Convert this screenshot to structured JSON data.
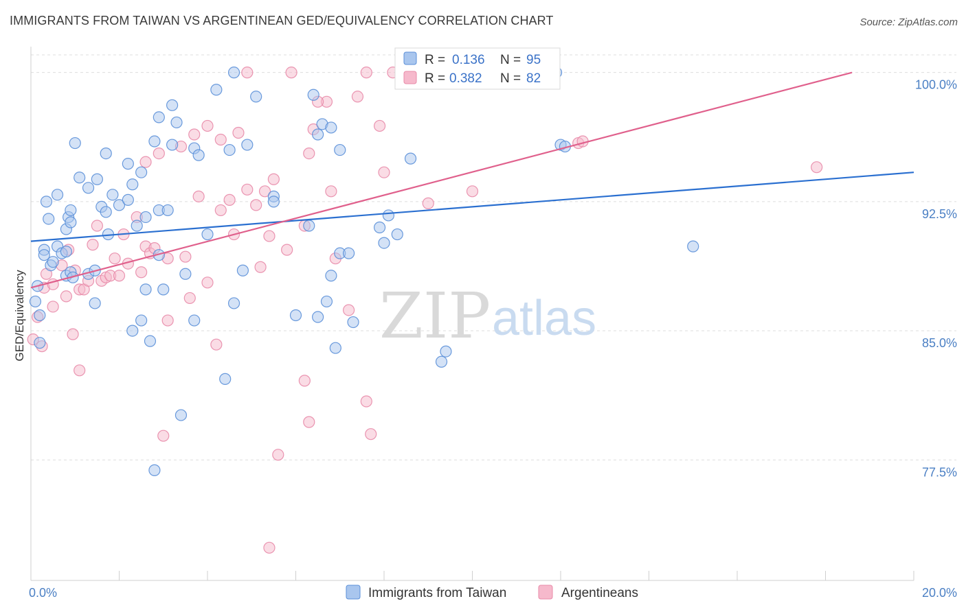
{
  "title": "IMMIGRANTS FROM TAIWAN VS ARGENTINEAN GED/EQUIVALENCY CORRELATION CHART",
  "source": "Source: ZipAtlas.com",
  "watermark": {
    "zip": "ZIP",
    "atlas": "atlas"
  },
  "legend": {
    "r_label": "R =",
    "n_label": "N =",
    "entries": [
      {
        "r": "0.136",
        "n": "95"
      },
      {
        "r": "0.382",
        "n": "82"
      }
    ]
  },
  "bottom_legend": [
    "Immigrants from Taiwan",
    "Argentineans"
  ],
  "colors": {
    "blue_fill": "#a9c6ee",
    "blue_stroke": "#5a8fd8",
    "blue_line": "#2a6fd0",
    "pink_fill": "#f6b9cc",
    "pink_stroke": "#e88aa8",
    "pink_line": "#e0608c",
    "tick_text": "#4a7fc4",
    "grid": "#dddddd"
  },
  "chart_data": {
    "type": "scatter",
    "title": "IMMIGRANTS FROM TAIWAN VS ARGENTINEAN GED/EQUIVALENCY CORRELATION CHART",
    "xlabel": "",
    "ylabel": "GED/Equivalency",
    "xlim": [
      0,
      20
    ],
    "ylim": [
      70.5,
      101.5
    ],
    "x_tick_labels": [
      "0.0%",
      "20.0%"
    ],
    "y_ticks": [
      77.5,
      85.0,
      92.5,
      100.0
    ],
    "y_tick_labels": [
      "77.5%",
      "85.0%",
      "92.5%",
      "100.0%"
    ],
    "grid": "horizontal dashed",
    "legend_position": "top-center",
    "series": [
      {
        "name": "Immigrants from Taiwan",
        "r": 0.136,
        "n": 95,
        "trend": {
          "x": [
            0,
            20
          ],
          "y": [
            90.2,
            94.2
          ]
        },
        "points": [
          [
            0.1,
            86.7
          ],
          [
            0.15,
            87.6
          ],
          [
            0.2,
            84.3
          ],
          [
            0.2,
            85.9
          ],
          [
            0.3,
            89.7
          ],
          [
            0.3,
            89.4
          ],
          [
            0.45,
            88.8
          ],
          [
            0.5,
            89.0
          ],
          [
            0.6,
            89.9
          ],
          [
            0.7,
            89.5
          ],
          [
            0.8,
            89.6
          ],
          [
            0.4,
            91.5
          ],
          [
            0.8,
            88.2
          ],
          [
            0.9,
            88.4
          ],
          [
            0.95,
            88.1
          ],
          [
            1.3,
            88.3
          ],
          [
            1.45,
            88.5
          ],
          [
            1.45,
            86.6
          ],
          [
            0.8,
            90.9
          ],
          [
            0.85,
            91.6
          ],
          [
            0.9,
            91.3
          ],
          [
            0.6,
            92.9
          ],
          [
            0.9,
            92.0
          ],
          [
            1.1,
            93.9
          ],
          [
            1.3,
            93.3
          ],
          [
            1.6,
            92.2
          ],
          [
            1.7,
            91.9
          ],
          [
            1.75,
            90.6
          ],
          [
            1.85,
            92.9
          ],
          [
            2.0,
            92.3
          ],
          [
            2.2,
            92.6
          ],
          [
            2.4,
            91.1
          ],
          [
            2.6,
            91.6
          ],
          [
            2.9,
            92.0
          ],
          [
            3.1,
            92.0
          ],
          [
            2.9,
            89.4
          ],
          [
            2.6,
            87.4
          ],
          [
            3.0,
            87.4
          ],
          [
            3.5,
            88.3
          ],
          [
            2.5,
            85.6
          ],
          [
            2.3,
            85.0
          ],
          [
            2.7,
            84.4
          ],
          [
            3.7,
            85.6
          ],
          [
            1.0,
            95.9
          ],
          [
            1.5,
            93.8
          ],
          [
            1.7,
            95.3
          ],
          [
            2.2,
            94.7
          ],
          [
            2.3,
            93.5
          ],
          [
            2.5,
            94.2
          ],
          [
            2.8,
            96.0
          ],
          [
            2.9,
            97.4
          ],
          [
            3.2,
            95.8
          ],
          [
            3.2,
            98.1
          ],
          [
            3.3,
            97.1
          ],
          [
            3.7,
            95.6
          ],
          [
            3.8,
            95.2
          ],
          [
            4.2,
            99.0
          ],
          [
            4.5,
            95.5
          ],
          [
            4.6,
            100.0
          ],
          [
            4.9,
            95.8
          ],
          [
            5.1,
            98.6
          ],
          [
            5.5,
            92.8
          ],
          [
            5.5,
            92.5
          ],
          [
            4.0,
            90.6
          ],
          [
            4.6,
            86.6
          ],
          [
            4.8,
            88.5
          ],
          [
            4.4,
            82.2
          ],
          [
            3.4,
            80.1
          ],
          [
            2.8,
            76.9
          ],
          [
            6.0,
            85.9
          ],
          [
            6.3,
            91.1
          ],
          [
            6.4,
            98.7
          ],
          [
            6.5,
            96.4
          ],
          [
            6.6,
            97.0
          ],
          [
            6.8,
            96.8
          ],
          [
            7.0,
            95.5
          ],
          [
            6.5,
            85.8
          ],
          [
            6.7,
            86.7
          ],
          [
            6.8,
            88.2
          ],
          [
            6.9,
            84.0
          ],
          [
            7.0,
            89.5
          ],
          [
            7.2,
            89.5
          ],
          [
            7.3,
            85.5
          ],
          [
            7.9,
            91.0
          ],
          [
            8.0,
            90.1
          ],
          [
            8.1,
            91.7
          ],
          [
            8.3,
            90.6
          ],
          [
            8.6,
            95.0
          ],
          [
            9.3,
            83.2
          ],
          [
            9.4,
            83.8
          ],
          [
            12.0,
            95.8
          ],
          [
            12.1,
            95.7
          ],
          [
            15.0,
            89.9
          ],
          [
            11.9,
            100.0
          ],
          [
            0.35,
            92.5
          ]
        ]
      },
      {
        "name": "Argentineans",
        "r": 0.382,
        "n": 82,
        "trend": {
          "x": [
            0,
            18.6
          ],
          "y": [
            87.5,
            100.0
          ]
        },
        "points": [
          [
            0.05,
            84.5
          ],
          [
            0.15,
            85.8
          ],
          [
            0.25,
            84.1
          ],
          [
            0.3,
            87.5
          ],
          [
            0.35,
            88.3
          ],
          [
            0.5,
            87.7
          ],
          [
            0.5,
            86.4
          ],
          [
            0.7,
            88.8
          ],
          [
            0.8,
            87.0
          ],
          [
            0.85,
            89.7
          ],
          [
            1.0,
            88.5
          ],
          [
            1.1,
            87.4
          ],
          [
            1.2,
            87.4
          ],
          [
            1.3,
            87.9
          ],
          [
            1.4,
            90.0
          ],
          [
            1.5,
            91.1
          ],
          [
            1.6,
            87.9
          ],
          [
            1.7,
            88.1
          ],
          [
            1.8,
            88.2
          ],
          [
            1.9,
            89.2
          ],
          [
            2.0,
            88.2
          ],
          [
            2.1,
            90.6
          ],
          [
            2.2,
            88.9
          ],
          [
            2.4,
            91.6
          ],
          [
            2.5,
            88.4
          ],
          [
            2.6,
            89.9
          ],
          [
            2.7,
            89.5
          ],
          [
            2.8,
            89.8
          ],
          [
            3.1,
            89.2
          ],
          [
            0.95,
            84.8
          ],
          [
            1.1,
            82.7
          ],
          [
            3.1,
            85.6
          ],
          [
            3.5,
            89.3
          ],
          [
            3.6,
            86.9
          ],
          [
            3.8,
            92.8
          ],
          [
            4.0,
            87.8
          ],
          [
            4.2,
            84.2
          ],
          [
            4.3,
            92.0
          ],
          [
            4.5,
            92.6
          ],
          [
            4.6,
            90.6
          ],
          [
            4.9,
            93.2
          ],
          [
            5.1,
            92.3
          ],
          [
            5.2,
            88.7
          ],
          [
            5.3,
            93.1
          ],
          [
            5.5,
            93.8
          ],
          [
            5.4,
            90.5
          ],
          [
            5.8,
            89.7
          ],
          [
            6.2,
            91.1
          ],
          [
            6.3,
            95.3
          ],
          [
            6.4,
            96.7
          ],
          [
            6.7,
            98.3
          ],
          [
            6.8,
            93.1
          ],
          [
            6.9,
            89.2
          ],
          [
            7.2,
            86.2
          ],
          [
            7.4,
            98.6
          ],
          [
            7.6,
            100.0
          ],
          [
            7.9,
            96.9
          ],
          [
            8.0,
            94.2
          ],
          [
            8.2,
            100.0
          ],
          [
            9.0,
            92.4
          ],
          [
            9.5,
            100.0
          ],
          [
            2.9,
            95.3
          ],
          [
            3.4,
            95.7
          ],
          [
            3.7,
            96.4
          ],
          [
            4.0,
            96.9
          ],
          [
            4.3,
            96.1
          ],
          [
            4.7,
            96.5
          ],
          [
            4.9,
            100.0
          ],
          [
            5.9,
            100.0
          ],
          [
            6.5,
            98.3
          ],
          [
            10.0,
            93.1
          ],
          [
            12.4,
            95.9
          ],
          [
            12.5,
            96.0
          ],
          [
            17.8,
            94.5
          ],
          [
            3.0,
            78.9
          ],
          [
            5.6,
            77.8
          ],
          [
            6.3,
            79.7
          ],
          [
            7.6,
            80.9
          ],
          [
            7.7,
            79.0
          ],
          [
            6.2,
            82.1
          ],
          [
            5.4,
            72.4
          ],
          [
            2.6,
            94.8
          ]
        ]
      }
    ]
  }
}
